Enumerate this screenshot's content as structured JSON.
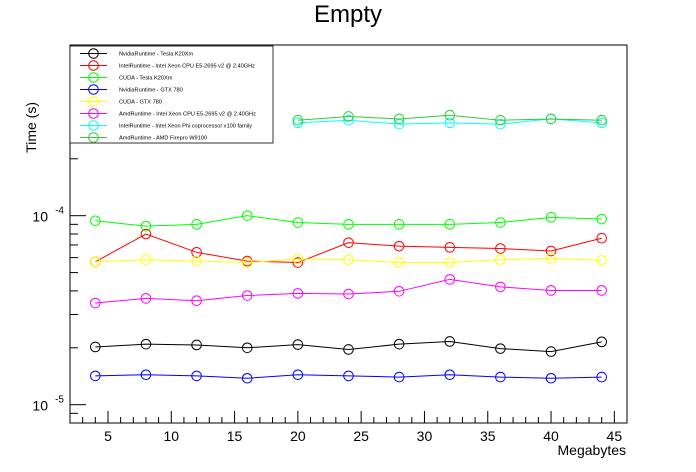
{
  "chart_data": {
    "type": "line",
    "title": "Empty",
    "xlabel": "Megabytes",
    "ylabel": "Time (s)",
    "xlim": [
      2,
      46
    ],
    "ylim": [
      8e-06,
      0.0008
    ],
    "log_y": true,
    "grid": false,
    "legend_position": "top-left",
    "x_ticks": [
      5,
      10,
      15,
      20,
      25,
      30,
      35,
      40,
      45
    ],
    "x_tick_labels": [
      "5",
      "10",
      "15",
      "20",
      "25",
      "30",
      "35",
      "40",
      "45"
    ],
    "y_tick_labels": [
      {
        "value": 1e-05,
        "base": "10",
        "exp": "-5"
      },
      {
        "value": 0.0001,
        "base": "10",
        "exp": "-4"
      }
    ],
    "x": [
      4,
      8,
      12,
      16,
      20,
      24,
      28,
      32,
      36,
      40,
      44
    ],
    "series": [
      {
        "name": "NvidiaRuntime - Tesla K20Xm",
        "color": "#000000",
        "values": [
          2.02e-05,
          2.09e-05,
          2.07e-05,
          2e-05,
          2.08e-05,
          1.96e-05,
          2.09e-05,
          2.16e-05,
          1.98e-05,
          1.91e-05,
          2.15e-05
        ]
      },
      {
        "name": "IntelRuntime - Intel Xeon CPU E5-2695 v2 @ 2.40GHz",
        "color": "#ff0000",
        "values": [
          5.7e-05,
          8e-05,
          6.4e-05,
          5.75e-05,
          5.65e-05,
          7.2e-05,
          6.9e-05,
          6.8e-05,
          6.7e-05,
          6.5e-05,
          7.6e-05
        ]
      },
      {
        "name": "CUDA - Tesla K20Xm",
        "color": "#00ff00",
        "values": [
          9.4e-05,
          8.8e-05,
          9e-05,
          0.0001,
          9.2e-05,
          9e-05,
          9e-05,
          9e-05,
          9.2e-05,
          9.8e-05,
          9.6e-05
        ]
      },
      {
        "name": "NvidiaRuntime - GTX 780",
        "color": "#0000ff",
        "values": [
          1.42e-05,
          1.44e-05,
          1.42e-05,
          1.38e-05,
          1.44e-05,
          1.42e-05,
          1.4e-05,
          1.44e-05,
          1.4e-05,
          1.38e-05,
          1.4e-05
        ]
      },
      {
        "name": "CUDA - GTX 780",
        "color": "#ffff00",
        "values": [
          5.7e-05,
          5.85e-05,
          5.75e-05,
          5.65e-05,
          5.9e-05,
          5.85e-05,
          5.65e-05,
          5.65e-05,
          5.85e-05,
          5.95e-05,
          5.8e-05
        ]
      },
      {
        "name": "AmdRuntime - Intel Xeon CPU E5-2695 v2 @ 2.40GHz",
        "color": "#ff00ff",
        "values": [
          3.45e-05,
          3.65e-05,
          3.55e-05,
          3.78e-05,
          3.88e-05,
          3.85e-05,
          3.98e-05,
          4.6e-05,
          4.2e-05,
          4.02e-05,
          4.02e-05
        ]
      },
      {
        "name": "IntelRuntime - Intel Xeon Phi coprocessor x100 family",
        "color": "#00ffff",
        "values": [
          null,
          null,
          null,
          null,
          0.00031,
          0.00032,
          0.000305,
          0.00031,
          0.000305,
          0.000325,
          0.00031
        ]
      },
      {
        "name": "AmdRuntime - AMD Firepro W9100",
        "color": "#33cc33",
        "values": [
          null,
          null,
          null,
          null,
          0.00032,
          0.000335,
          0.000325,
          0.00034,
          0.00032,
          0.000325,
          0.00032
        ]
      }
    ]
  }
}
